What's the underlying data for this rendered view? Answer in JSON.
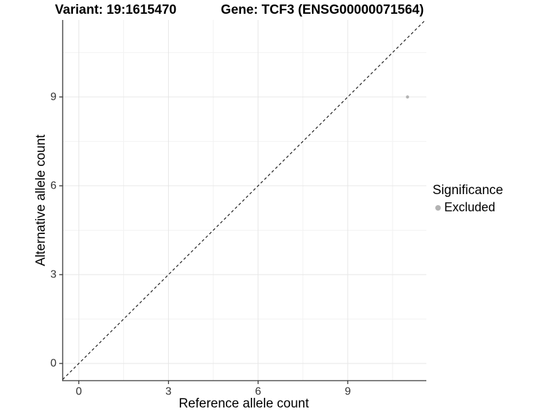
{
  "header": {
    "title_left": "Variant: 19:1615470",
    "title_right": "Gene: TCF3 (ENSG00000071564)"
  },
  "axes": {
    "x_label": "Reference allele count",
    "y_label": "Alternative allele count"
  },
  "legend": {
    "title": "Significance",
    "items": [
      {
        "label": "Excluded",
        "color": "#b3b3b3"
      }
    ]
  },
  "colors": {
    "grid_major": "#e6e6e6",
    "grid_minor": "#f2f2f2",
    "axis_line": "#333333",
    "tick_text": "#333333",
    "identity_line": "#1a1a1a",
    "point": "#b3b3b3",
    "background": "#ffffff"
  },
  "chart_data": {
    "type": "scatter",
    "title": "Variant: 19:1615470 — Gene: TCF3 (ENSG00000071564)",
    "xlabel": "Reference allele count",
    "ylabel": "Alternative allele count",
    "xlim": [
      -0.54,
      11.63
    ],
    "ylim": [
      -0.58,
      11.6
    ],
    "xticks": [
      0,
      3,
      6,
      9
    ],
    "yticks": [
      0,
      3,
      6,
      9
    ],
    "xticks_minor": [
      1.5,
      4.5,
      7.5,
      10.5
    ],
    "yticks_minor": [
      1.5,
      4.5,
      7.5,
      10.5
    ],
    "grid": true,
    "legend_position": "right",
    "identity_line": {
      "slope": 1,
      "intercept": 0,
      "style": "dashed"
    },
    "series": [
      {
        "name": "Excluded",
        "color": "#b3b3b3",
        "points": [
          {
            "x": 11,
            "y": 9
          }
        ]
      }
    ]
  }
}
